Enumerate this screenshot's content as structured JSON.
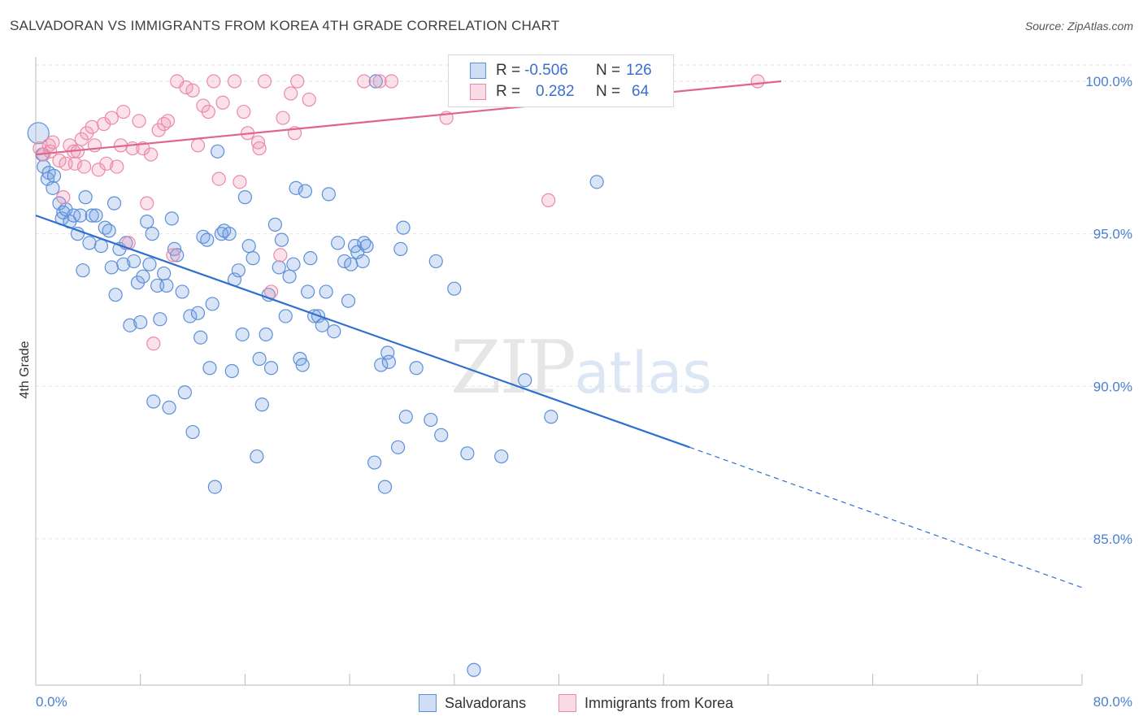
{
  "title": "SALVADORAN VS IMMIGRANTS FROM KOREA 4TH GRADE CORRELATION CHART",
  "source": "Source: ZipAtlas.com",
  "watermark": {
    "zip": "ZIP",
    "atlas": "atlas"
  },
  "legend": {
    "r_label": "R =",
    "n_label": "N =",
    "rows": [
      {
        "r": "-0.506",
        "n": "126"
      },
      {
        "r": "0.282",
        "n": "64"
      }
    ]
  },
  "bottom_legend": [
    "Salvadorans",
    "Immigrants from Korea"
  ],
  "colors": {
    "blue": "#5b8fd9",
    "blue_fill": "rgba(120,160,225,0.28)",
    "blue_line": "#2e6fd0",
    "pink": "#e98aa8",
    "pink_fill": "rgba(240,150,180,0.28)",
    "pink_line": "#e0648f",
    "tick": "#4a7fd0"
  },
  "chart_data": {
    "type": "scatter",
    "title": "SALVADORAN VS IMMIGRANTS FROM KOREA 4TH GRADE CORRELATION CHART",
    "xlabel": "",
    "ylabel": "4th Grade",
    "xlim": [
      0,
      80
    ],
    "ylim": [
      80.2,
      100.8
    ],
    "x_tick_labels": [
      "0.0%",
      "80.0%"
    ],
    "y_ticks": [
      85,
      90,
      95,
      100
    ],
    "y_tick_labels": [
      "85.0%",
      "90.0%",
      "95.0%",
      "100.0%"
    ],
    "grid": true,
    "series": [
      {
        "name": "Salvadorans",
        "r": -0.506,
        "n": 126,
        "trend": {
          "x0": 0,
          "y0": 95.6,
          "x1": 50,
          "y1": 88.0,
          "dash_to_x": 80,
          "dash_to_y": 83.4
        },
        "points": [
          [
            0.2,
            98.3
          ],
          [
            0.5,
            97.6
          ],
          [
            0.6,
            97.2
          ],
          [
            0.9,
            96.8
          ],
          [
            1.0,
            97.0
          ],
          [
            1.3,
            96.5
          ],
          [
            1.4,
            96.9
          ],
          [
            1.8,
            96.0
          ],
          [
            2.0,
            95.5
          ],
          [
            2.1,
            95.7
          ],
          [
            2.3,
            95.8
          ],
          [
            2.6,
            95.4
          ],
          [
            2.9,
            95.6
          ],
          [
            3.2,
            95.0
          ],
          [
            3.4,
            95.6
          ],
          [
            3.6,
            93.8
          ],
          [
            3.8,
            96.2
          ],
          [
            4.1,
            94.7
          ],
          [
            4.3,
            95.6
          ],
          [
            4.6,
            95.6
          ],
          [
            5.0,
            94.6
          ],
          [
            5.3,
            95.2
          ],
          [
            5.6,
            95.1
          ],
          [
            5.8,
            93.9
          ],
          [
            6.0,
            96.0
          ],
          [
            6.1,
            93.0
          ],
          [
            6.4,
            94.5
          ],
          [
            6.7,
            94.0
          ],
          [
            6.9,
            94.7
          ],
          [
            7.2,
            92.0
          ],
          [
            7.5,
            94.1
          ],
          [
            7.8,
            93.4
          ],
          [
            8.0,
            92.1
          ],
          [
            8.2,
            93.6
          ],
          [
            8.5,
            95.4
          ],
          [
            8.7,
            94.0
          ],
          [
            8.9,
            95.0
          ],
          [
            9.0,
            89.5
          ],
          [
            9.3,
            93.3
          ],
          [
            9.5,
            92.2
          ],
          [
            9.8,
            93.7
          ],
          [
            10.0,
            93.3
          ],
          [
            10.2,
            89.3
          ],
          [
            10.4,
            95.5
          ],
          [
            10.6,
            94.5
          ],
          [
            10.8,
            94.3
          ],
          [
            11.2,
            93.1
          ],
          [
            11.4,
            89.8
          ],
          [
            11.8,
            92.3
          ],
          [
            12.0,
            88.5
          ],
          [
            12.4,
            92.4
          ],
          [
            12.6,
            91.6
          ],
          [
            12.8,
            94.9
          ],
          [
            13.1,
            94.8
          ],
          [
            13.3,
            90.6
          ],
          [
            13.5,
            92.7
          ],
          [
            13.7,
            86.7
          ],
          [
            13.9,
            97.7
          ],
          [
            14.2,
            95.0
          ],
          [
            14.4,
            95.1
          ],
          [
            14.8,
            95.0
          ],
          [
            15.0,
            90.5
          ],
          [
            15.2,
            93.5
          ],
          [
            15.5,
            93.8
          ],
          [
            15.8,
            91.7
          ],
          [
            16.0,
            96.2
          ],
          [
            16.3,
            94.6
          ],
          [
            16.6,
            94.2
          ],
          [
            16.9,
            87.7
          ],
          [
            17.1,
            90.9
          ],
          [
            17.3,
            89.4
          ],
          [
            17.6,
            91.7
          ],
          [
            17.8,
            93.0
          ],
          [
            18.0,
            90.6
          ],
          [
            18.3,
            95.3
          ],
          [
            18.6,
            93.9
          ],
          [
            18.8,
            94.8
          ],
          [
            19.1,
            92.3
          ],
          [
            19.4,
            93.6
          ],
          [
            19.7,
            94.0
          ],
          [
            19.9,
            96.5
          ],
          [
            20.2,
            90.9
          ],
          [
            20.4,
            90.7
          ],
          [
            20.6,
            96.4
          ],
          [
            20.8,
            93.1
          ],
          [
            21.0,
            94.2
          ],
          [
            21.3,
            92.3
          ],
          [
            21.6,
            92.3
          ],
          [
            21.9,
            92.0
          ],
          [
            22.2,
            93.1
          ],
          [
            22.4,
            96.3
          ],
          [
            22.8,
            91.8
          ],
          [
            23.1,
            94.7
          ],
          [
            23.6,
            94.1
          ],
          [
            23.9,
            92.8
          ],
          [
            24.1,
            94.0
          ],
          [
            24.4,
            94.6
          ],
          [
            24.6,
            94.4
          ],
          [
            25.0,
            94.1
          ],
          [
            25.1,
            94.7
          ],
          [
            25.3,
            94.6
          ],
          [
            25.9,
            87.5
          ],
          [
            26.0,
            100.0
          ],
          [
            26.4,
            90.7
          ],
          [
            26.7,
            86.7
          ],
          [
            26.9,
            91.1
          ],
          [
            27.0,
            90.8
          ],
          [
            27.7,
            88.0
          ],
          [
            27.9,
            94.5
          ],
          [
            28.1,
            95.2
          ],
          [
            28.3,
            89.0
          ],
          [
            29.1,
            90.6
          ],
          [
            30.2,
            88.9
          ],
          [
            30.6,
            94.1
          ],
          [
            31.0,
            88.4
          ],
          [
            32.0,
            93.2
          ],
          [
            33.0,
            87.8
          ],
          [
            33.5,
            80.7
          ],
          [
            35.6,
            87.7
          ],
          [
            37.4,
            90.2
          ],
          [
            39.4,
            89.0
          ],
          [
            42.9,
            96.7
          ]
        ]
      },
      {
        "name": "Immigrants from Korea",
        "r": 0.282,
        "n": 64,
        "trend": {
          "x0": 0,
          "y0": 97.6,
          "x1": 57,
          "y1": 100.0
        },
        "points": [
          [
            0.3,
            97.8
          ],
          [
            0.6,
            97.6
          ],
          [
            1.0,
            97.9
          ],
          [
            1.1,
            97.7
          ],
          [
            1.3,
            98.0
          ],
          [
            1.8,
            97.4
          ],
          [
            2.1,
            96.2
          ],
          [
            2.3,
            97.3
          ],
          [
            2.6,
            97.9
          ],
          [
            2.9,
            97.7
          ],
          [
            3.0,
            97.3
          ],
          [
            3.2,
            97.7
          ],
          [
            3.5,
            98.1
          ],
          [
            3.7,
            97.2
          ],
          [
            3.9,
            98.3
          ],
          [
            4.3,
            98.5
          ],
          [
            4.5,
            97.9
          ],
          [
            4.8,
            97.1
          ],
          [
            5.2,
            98.6
          ],
          [
            5.4,
            97.3
          ],
          [
            5.8,
            98.8
          ],
          [
            6.2,
            97.2
          ],
          [
            6.5,
            97.9
          ],
          [
            6.7,
            99.0
          ],
          [
            7.1,
            94.7
          ],
          [
            7.4,
            97.8
          ],
          [
            7.9,
            98.7
          ],
          [
            8.2,
            97.8
          ],
          [
            8.5,
            96.0
          ],
          [
            8.8,
            97.6
          ],
          [
            9.0,
            91.4
          ],
          [
            9.4,
            98.4
          ],
          [
            9.8,
            98.6
          ],
          [
            10.1,
            98.7
          ],
          [
            10.5,
            94.3
          ],
          [
            10.8,
            100.0
          ],
          [
            11.5,
            99.8
          ],
          [
            12.0,
            99.7
          ],
          [
            12.4,
            97.9
          ],
          [
            12.8,
            99.2
          ],
          [
            13.2,
            99.0
          ],
          [
            13.6,
            100.0
          ],
          [
            14.0,
            96.8
          ],
          [
            14.3,
            99.3
          ],
          [
            15.2,
            100.0
          ],
          [
            15.6,
            96.7
          ],
          [
            15.9,
            99.0
          ],
          [
            16.2,
            98.3
          ],
          [
            17.0,
            98.0
          ],
          [
            17.1,
            97.8
          ],
          [
            17.5,
            100.0
          ],
          [
            18.0,
            93.1
          ],
          [
            18.7,
            94.3
          ],
          [
            18.9,
            98.8
          ],
          [
            19.5,
            99.6
          ],
          [
            19.8,
            98.3
          ],
          [
            20.0,
            100.0
          ],
          [
            20.9,
            99.4
          ],
          [
            25.1,
            100.0
          ],
          [
            26.3,
            100.0
          ],
          [
            27.2,
            100.0
          ],
          [
            31.4,
            98.8
          ],
          [
            39.2,
            96.1
          ],
          [
            55.2,
            100.0
          ]
        ]
      }
    ]
  }
}
